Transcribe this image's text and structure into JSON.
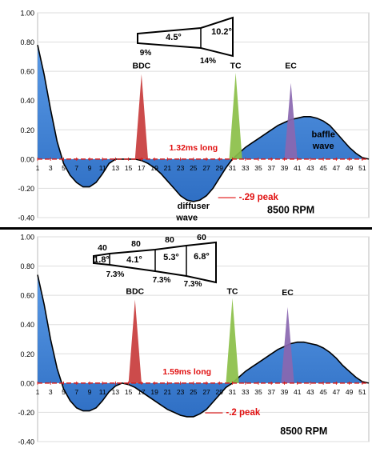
{
  "chart_data": [
    {
      "type": "area",
      "ylim": [
        -0.4,
        1.0
      ],
      "xlim": [
        1,
        52
      ],
      "yticks": [
        "1.00",
        "0.80",
        "0.60",
        "0.40",
        "0.20",
        "0.00",
        "-0.20",
        "-0.40"
      ],
      "ytick_values": [
        1.0,
        0.8,
        0.6,
        0.4,
        0.2,
        0.0,
        -0.2,
        -0.4
      ],
      "xticks": [
        "1",
        "3",
        "5",
        "7",
        "9",
        "11",
        "13",
        "15",
        "17",
        "19",
        "21",
        "23",
        "25",
        "27",
        "29",
        "31",
        "33",
        "35",
        "37",
        "39",
        "41",
        "43",
        "45",
        "47",
        "49",
        "51"
      ],
      "xtick_values": [
        1,
        3,
        5,
        7,
        9,
        11,
        13,
        15,
        17,
        19,
        21,
        23,
        25,
        27,
        29,
        31,
        33,
        35,
        37,
        39,
        41,
        43,
        45,
        47,
        49,
        51
      ],
      "grid": true,
      "series": [
        {
          "kind": "pressure",
          "color": "#3d7fd4",
          "x": [
            1,
            2,
            3,
            4,
            5,
            6,
            7,
            8,
            9,
            10,
            11,
            12,
            13,
            14,
            15,
            16,
            17,
            18,
            19,
            20,
            21,
            22,
            23,
            24,
            25,
            26,
            27,
            28,
            29,
            30,
            31,
            32,
            33,
            34,
            35,
            36,
            37,
            38,
            39,
            40,
            41,
            42,
            43,
            44,
            45,
            46,
            47,
            48,
            49,
            50,
            51,
            52
          ],
          "values": [
            0.78,
            0.58,
            0.34,
            0.12,
            -0.03,
            -0.11,
            -0.16,
            -0.19,
            -0.19,
            -0.16,
            -0.1,
            -0.03,
            0.0,
            0.0,
            0.0,
            0.0,
            -0.01,
            -0.03,
            -0.06,
            -0.1,
            -0.15,
            -0.2,
            -0.25,
            -0.28,
            -0.29,
            -0.28,
            -0.25,
            -0.2,
            -0.13,
            -0.06,
            0.0,
            0.04,
            0.08,
            0.11,
            0.14,
            0.17,
            0.2,
            0.23,
            0.25,
            0.27,
            0.28,
            0.29,
            0.29,
            0.28,
            0.26,
            0.23,
            0.18,
            0.13,
            0.08,
            0.04,
            0.01,
            0.0
          ]
        },
        {
          "kind": "spike",
          "x": 17,
          "width": 2.0,
          "height": 0.58,
          "color": "#c83c3c"
        },
        {
          "kind": "spike",
          "x": 31.5,
          "width": 2.0,
          "height": 0.59,
          "color": "#8bbf48"
        },
        {
          "kind": "spike",
          "x": 40,
          "width": 2.0,
          "height": 0.52,
          "color": "#8a67b0"
        }
      ],
      "annotations": {
        "bdc": {
          "text": "BDC",
          "x": 17,
          "y": 0.62
        },
        "tc": {
          "text": "TC",
          "x": 31.5,
          "y": 0.62
        },
        "ec": {
          "text": "EC",
          "x": 40,
          "y": 0.62
        },
        "duration": {
          "text": "1.32ms long",
          "x": 25,
          "y": 0.06
        },
        "peak": {
          "text": "-.29 peak",
          "x": 32,
          "y": -0.28
        },
        "baffle_line1": {
          "text": "baffle",
          "x": 45,
          "y": 0.15
        },
        "baffle_line2": {
          "text": "wave",
          "x": 45,
          "y": 0.07
        },
        "diffuser_line1": {
          "text": "diffuser",
          "x": 25,
          "y": -0.34
        },
        "diffuser_line2": {
          "text": "wave",
          "x": 24,
          "y": -0.42
        },
        "rpm": {
          "text": "8500 RPM",
          "x": 40,
          "y": -0.37
        }
      },
      "cone": {
        "segments": [
          {
            "angle": "4.5°"
          },
          {
            "angle": "10.2°"
          }
        ],
        "below_labels": [
          "9%",
          "14%"
        ]
      }
    },
    {
      "type": "area",
      "ylim": [
        -0.4,
        1.0
      ],
      "xlim": [
        1,
        52
      ],
      "yticks": [
        "1.00",
        "0.80",
        "0.60",
        "0.40",
        "0.20",
        "0.00",
        "-0.20",
        "-0.40"
      ],
      "ytick_values": [
        1.0,
        0.8,
        0.6,
        0.4,
        0.2,
        0.0,
        -0.2,
        -0.4
      ],
      "xticks": [
        "1",
        "3",
        "5",
        "7",
        "9",
        "11",
        "13",
        "15",
        "17",
        "19",
        "21",
        "23",
        "25",
        "27",
        "29",
        "31",
        "33",
        "35",
        "37",
        "39",
        "41",
        "43",
        "45",
        "47",
        "49",
        "51"
      ],
      "xtick_values": [
        1,
        3,
        5,
        7,
        9,
        11,
        13,
        15,
        17,
        19,
        21,
        23,
        25,
        27,
        29,
        31,
        33,
        35,
        37,
        39,
        41,
        43,
        45,
        47,
        49,
        51
      ],
      "grid": true,
      "series": [
        {
          "kind": "pressure",
          "color": "#3d7fd4",
          "x": [
            1,
            2,
            3,
            4,
            5,
            6,
            7,
            8,
            9,
            10,
            11,
            12,
            13,
            14,
            15,
            16,
            17,
            18,
            19,
            20,
            21,
            22,
            23,
            24,
            25,
            26,
            27,
            28,
            29,
            30,
            31,
            32,
            33,
            34,
            35,
            36,
            37,
            38,
            39,
            40,
            41,
            42,
            43,
            44,
            45,
            46,
            47,
            48,
            49,
            50,
            51,
            52
          ],
          "values": [
            0.74,
            0.54,
            0.3,
            0.1,
            -0.04,
            -0.12,
            -0.17,
            -0.19,
            -0.19,
            -0.17,
            -0.12,
            -0.06,
            -0.02,
            0.0,
            -0.01,
            -0.03,
            -0.06,
            -0.09,
            -0.12,
            -0.15,
            -0.18,
            -0.2,
            -0.22,
            -0.23,
            -0.23,
            -0.21,
            -0.18,
            -0.13,
            -0.08,
            -0.03,
            0.0,
            0.04,
            0.08,
            0.11,
            0.14,
            0.17,
            0.2,
            0.23,
            0.25,
            0.27,
            0.28,
            0.28,
            0.27,
            0.26,
            0.24,
            0.21,
            0.17,
            0.12,
            0.08,
            0.04,
            0.01,
            0.0
          ]
        },
        {
          "kind": "spike",
          "x": 16,
          "width": 2.0,
          "height": 0.57,
          "color": "#c83c3c"
        },
        {
          "kind": "spike",
          "x": 31,
          "width": 2.0,
          "height": 0.58,
          "color": "#8bbf48"
        },
        {
          "kind": "spike",
          "x": 39.5,
          "width": 2.0,
          "height": 0.52,
          "color": "#8a67b0"
        }
      ],
      "annotations": {
        "bdc": {
          "text": "BDC",
          "x": 16,
          "y": 0.61
        },
        "tc": {
          "text": "TC",
          "x": 31,
          "y": 0.61
        },
        "ec": {
          "text": "EC",
          "x": 39.5,
          "y": 0.6
        },
        "duration": {
          "text": "1.59ms long",
          "x": 24,
          "y": 0.06
        },
        "peak": {
          "text": "-.2 peak",
          "x": 30,
          "y": -0.22
        },
        "rpm": {
          "text": "8500 RPM",
          "x": 42,
          "y": -0.35
        }
      },
      "cone": {
        "segments": [
          {
            "top": "40",
            "angle": "1.8°"
          },
          {
            "top": "80",
            "angle": "4.1°"
          },
          {
            "top": "80",
            "angle": "5.3°"
          },
          {
            "top": "60",
            "angle": "6.8°"
          }
        ],
        "below_labels": [
          "7.3%",
          "7.3%",
          "7.3%"
        ]
      }
    }
  ]
}
